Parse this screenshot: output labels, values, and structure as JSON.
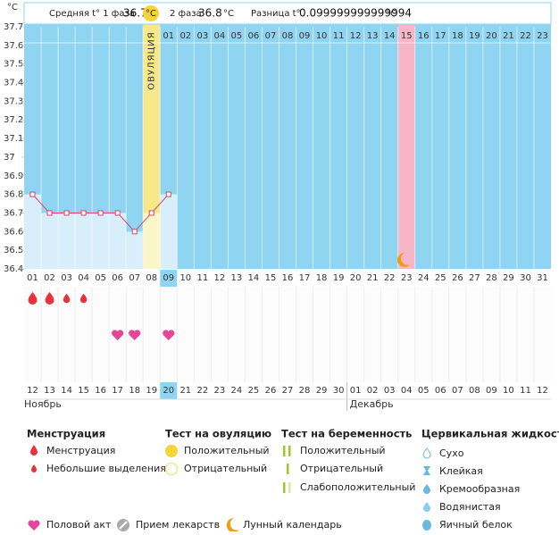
{
  "header": {
    "unit": "°C",
    "phase1_label": "Средняя t° 1 фаза",
    "phase1_value": "36.7",
    "phase1_unit": "°C",
    "phase2_label": "2 фаза",
    "phase2_value": "36.8",
    "phase2_unit": "°C",
    "diff_label": "Разница t°",
    "diff_value": "0.099999999999994",
    "diff_unit": "°C"
  },
  "chart_data": {
    "type": "line",
    "color": "#d9456e",
    "fill_color": "#d8eefa",
    "categories": [
      "01",
      "02",
      "03",
      "04",
      "05",
      "06",
      "07",
      "08",
      "09",
      "10",
      "11",
      "12",
      "13",
      "14",
      "15",
      "16",
      "17",
      "18",
      "19",
      "20",
      "21",
      "22",
      "23",
      "24",
      "25",
      "26",
      "27",
      "28",
      "29",
      "30",
      "31"
    ],
    "values": [
      36.8,
      36.7,
      36.7,
      36.7,
      36.7,
      36.7,
      36.6,
      36.7,
      36.8,
      null,
      null,
      null,
      null,
      null,
      null,
      null,
      null,
      null,
      null,
      null,
      null,
      null,
      null,
      null,
      null,
      null,
      null,
      null,
      null,
      null,
      null
    ],
    "ylim": [
      36.4,
      37.7
    ],
    "yticks": [
      36.4,
      36.5,
      36.6,
      36.7,
      36.8,
      36.9,
      37,
      37.1,
      37.2,
      37.3,
      37.4,
      37.5,
      37.6,
      37.7
    ],
    "ovulation_label": "ОВУЛЯЦИЯ",
    "phase2_days": [
      "01",
      "02",
      "03",
      "04",
      "05",
      "06",
      "07",
      "08",
      "09",
      "10",
      "11",
      "12",
      "13",
      "14",
      "15",
      "16",
      "17",
      "18",
      "19",
      "20",
      "21",
      "22",
      "23"
    ]
  },
  "calendar": {
    "dates": [
      {
        "text": "12",
        "color": "#333"
      },
      {
        "text": "13",
        "color": "#333"
      },
      {
        "text": "14",
        "color": "#c8102e"
      },
      {
        "text": "15",
        "color": "#c8102e"
      },
      {
        "text": "16",
        "color": "#333"
      },
      {
        "text": "17",
        "color": "#333"
      },
      {
        "text": "18",
        "color": "#333"
      },
      {
        "text": "19",
        "color": "#333"
      },
      {
        "text": "20",
        "color": "#333"
      },
      {
        "text": "21",
        "color": "#c8102e"
      },
      {
        "text": "22",
        "color": "#c8102e"
      },
      {
        "text": "23",
        "color": "#333"
      },
      {
        "text": "24",
        "color": "#333"
      },
      {
        "text": "25",
        "color": "#333"
      },
      {
        "text": "26",
        "color": "#333"
      },
      {
        "text": "27",
        "color": "#333"
      },
      {
        "text": "28",
        "color": "#c8102e"
      },
      {
        "text": "29",
        "color": "#c8102e"
      },
      {
        "text": "30",
        "color": "#333"
      },
      {
        "text": "01",
        "color": "#333"
      },
      {
        "text": "02",
        "color": "#333"
      },
      {
        "text": "03",
        "color": "#333"
      },
      {
        "text": "04",
        "color": "#333"
      },
      {
        "text": "05",
        "color": "#c8102e"
      },
      {
        "text": "06",
        "color": "#c8102e"
      },
      {
        "text": "07",
        "color": "#333"
      },
      {
        "text": "08",
        "color": "#333"
      },
      {
        "text": "09",
        "color": "#333"
      },
      {
        "text": "10",
        "color": "#333"
      },
      {
        "text": "11",
        "color": "#333"
      },
      {
        "text": "12",
        "color": "#c8102e"
      }
    ],
    "months": [
      "Ноябрь",
      "Декабрь"
    ]
  },
  "legend": {
    "menstruation": {
      "title": "Менструация",
      "items": [
        "Менструация",
        "Небольшие выделения"
      ]
    },
    "ovulation_test": {
      "title": "Тест на овуляцию",
      "items": [
        "Положительный",
        "Отрицательный"
      ]
    },
    "pregnancy_test": {
      "title": "Тест на беременность",
      "items": [
        "Положительный",
        "Отрицательный",
        "Слабоположительный"
      ]
    },
    "cervical": {
      "title": "Цервикальная жидкость",
      "items": [
        "Сухо",
        "Клейкая",
        "Кремообразная",
        "Водянистая",
        "Яичный белок"
      ]
    },
    "other": [
      "Половой акт",
      "Прием лекарств",
      "Лунный календарь"
    ]
  }
}
